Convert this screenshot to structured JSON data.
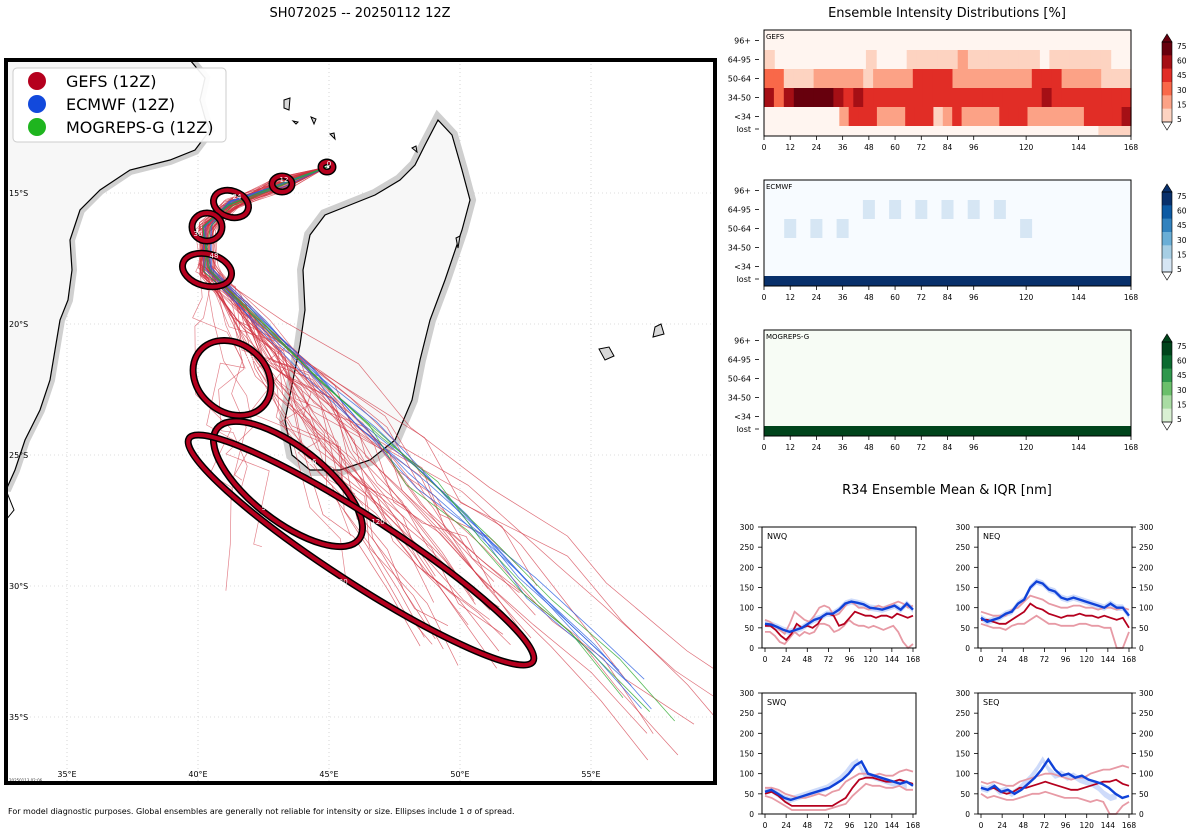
{
  "map": {
    "title": "SH072025 -- 20250112 12Z",
    "legend": [
      {
        "label": "GEFS (12Z)",
        "color": "#b5001e"
      },
      {
        "label": "ECMWF (12Z)",
        "color": "#1249dc"
      },
      {
        "label": "MOGREPS-G (12Z)",
        "color": "#1fb51f"
      }
    ],
    "lon_labels": [
      "35°E",
      "40°E",
      "45°E",
      "50°E",
      "55°E"
    ],
    "lat_labels": [
      "15°S",
      "20°S",
      "25°S",
      "30°S",
      "35°S"
    ],
    "stamp": "20250113 02:06",
    "tau_labels": [
      "0",
      "12",
      "24",
      "36",
      "48",
      "72",
      "96",
      "96",
      "120",
      "120"
    ],
    "footnote": "For model diagnostic purposes. Global ensembles are generally not reliable for intensity or size. Ellipses include 1 σ of spread."
  },
  "intensity": {
    "title": "Ensemble Intensity Distributions [%]",
    "y_labels": [
      "96+",
      "64-95",
      "50-64",
      "34-50",
      "<34",
      "lost"
    ],
    "x_ticks": [
      "0",
      "12",
      "24",
      "36",
      "48",
      "60",
      "72",
      "84",
      "96",
      "120",
      "144",
      "168"
    ],
    "colorbar_ticks": [
      "75",
      "60",
      "45",
      "30",
      "15",
      "5"
    ],
    "panels": [
      {
        "name": "GEFS",
        "color": "#c0392b"
      },
      {
        "name": "ECMWF",
        "color": "#2471b5"
      },
      {
        "name": "MOGREPS-G",
        "color": "#2e8b3e"
      }
    ]
  },
  "r34": {
    "title": "R34 Ensemble Mean & IQR [nm]",
    "y_ticks": [
      "0",
      "50",
      "100",
      "150",
      "200",
      "250",
      "300"
    ],
    "x_ticks": [
      "0",
      "24",
      "48",
      "72",
      "96",
      "120",
      "144",
      "168"
    ]
  },
  "chart_data": [
    {
      "type": "heatmap",
      "title": "GEFS",
      "ylabels": [
        "96+",
        "64-95",
        "50-64",
        "34-50",
        "<34",
        "lost"
      ],
      "xlim": [
        0,
        168
      ],
      "step_hours": 6,
      "units": "%",
      "rows": {
        "96+": [
          0,
          0,
          0,
          0,
          0,
          0,
          0,
          0,
          0,
          0,
          0,
          0,
          0,
          0,
          0,
          0,
          0,
          0,
          0,
          0,
          0,
          0,
          0,
          0,
          0,
          0,
          0,
          0,
          0
        ],
        "64-95": [
          8,
          2,
          2,
          2,
          2,
          2,
          2,
          2,
          2,
          2,
          8,
          2,
          2,
          2,
          8,
          8,
          8,
          8,
          8,
          18,
          8,
          8,
          8,
          8,
          8,
          8,
          8,
          2,
          8,
          8,
          8,
          8,
          8,
          8,
          2,
          2
        ],
        "50-64": [
          40,
          30,
          8,
          8,
          8,
          25,
          25,
          25,
          25,
          25,
          8,
          25,
          25,
          25,
          25,
          45,
          45,
          45,
          45,
          25,
          25,
          25,
          25,
          25,
          25,
          25,
          25,
          45,
          45,
          45,
          25,
          25,
          25,
          25,
          8,
          8,
          8
        ],
        "34-50": [
          60,
          40,
          70,
          90,
          90,
          90,
          80,
          60,
          50,
          70,
          45,
          45,
          45,
          45,
          45,
          45,
          45,
          45,
          45,
          45,
          45,
          45,
          45,
          45,
          45,
          45,
          45,
          45,
          60,
          45,
          45,
          45,
          45,
          45,
          45,
          45,
          45
        ],
        "<34": [
          2,
          2,
          2,
          2,
          2,
          2,
          2,
          2,
          15,
          45,
          45,
          45,
          25,
          25,
          25,
          45,
          45,
          45,
          8,
          25,
          45,
          25,
          25,
          25,
          25,
          45,
          45,
          45,
          25,
          25,
          25,
          25,
          25,
          25,
          45,
          45,
          45,
          45,
          60
        ],
        "lost": [
          0,
          0,
          0,
          0,
          0,
          0,
          0,
          0,
          0,
          0,
          0,
          0,
          0,
          0,
          0,
          0,
          0,
          0,
          0,
          0,
          0,
          0,
          0,
          0,
          0,
          0,
          0,
          0,
          0,
          0,
          0,
          0,
          0,
          0,
          0,
          0,
          0,
          0,
          0,
          0,
          0,
          8,
          8,
          8,
          8
        ]
      }
    },
    {
      "type": "heatmap",
      "title": "ECMWF",
      "ylabels": [
        "96+",
        "64-95",
        "50-64",
        "34-50",
        "<34",
        "lost"
      ],
      "xlim": [
        0,
        168
      ],
      "units": "%",
      "highlights": [
        {
          "row": "64-95",
          "hours": [
            48,
            60,
            72,
            84,
            96,
            108
          ],
          "value": 10
        },
        {
          "row": "50-64",
          "hours": [
            12,
            24,
            36,
            120
          ],
          "value": 10
        }
      ],
      "lost_all": 100
    },
    {
      "type": "heatmap",
      "title": "MOGREPS-G",
      "ylabels": [
        "96+",
        "64-95",
        "50-64",
        "34-50",
        "<34",
        "lost"
      ],
      "xlim": [
        0,
        168
      ],
      "units": "%",
      "lost_all": 100
    },
    {
      "type": "line",
      "title": "NWQ",
      "ylim": [
        0,
        300
      ],
      "xlim": [
        0,
        168
      ],
      "step_hours": 6,
      "series": [
        {
          "name": "ECMWF mean",
          "values": [
            60,
            58,
            52,
            45,
            40,
            45,
            50,
            60,
            70,
            75,
            85,
            85,
            95,
            110,
            115,
            112,
            108,
            100,
            98,
            95,
            100,
            105,
            95,
            110,
            95
          ]
        },
        {
          "name": "GEFS mean",
          "values": [
            55,
            55,
            45,
            30,
            20,
            35,
            60,
            50,
            55,
            50,
            60,
            80,
            85,
            80,
            55,
            60,
            75,
            90,
            85,
            80,
            80,
            75,
            80,
            80,
            75,
            85,
            80,
            75,
            80
          ]
        },
        {
          "name": "GEFS IQR low",
          "values": [
            40,
            40,
            30,
            15,
            10,
            25,
            40,
            30,
            40,
            35,
            40,
            60,
            60,
            55,
            40,
            45,
            55,
            70,
            60,
            55,
            55,
            50,
            55,
            50,
            45,
            50,
            55,
            40,
            15,
            0,
            10
          ]
        },
        {
          "name": "GEFS IQR high",
          "values": [
            70,
            65,
            55,
            45,
            35,
            60,
            90,
            80,
            70,
            65,
            80,
            100,
            105,
            100,
            80,
            85,
            100,
            115,
            110,
            100,
            100,
            95,
            100,
            105,
            100,
            105,
            110,
            115,
            110,
            100,
            105
          ]
        }
      ]
    },
    {
      "type": "line",
      "title": "NEQ",
      "ylim": [
        0,
        300
      ],
      "xlim": [
        0,
        168
      ],
      "step_hours": 6,
      "series": [
        {
          "name": "ECMWF mean",
          "values": [
            75,
            65,
            70,
            75,
            85,
            90,
            110,
            120,
            150,
            165,
            160,
            145,
            140,
            125,
            120,
            125,
            120,
            115,
            110,
            105,
            100,
            110,
            100,
            100,
            80
          ]
        },
        {
          "name": "GEFS mean",
          "values": [
            70,
            70,
            65,
            60,
            60,
            70,
            80,
            90,
            110,
            100,
            95,
            85,
            80,
            75,
            80,
            80,
            85,
            80,
            80,
            75,
            80,
            75,
            70,
            75,
            50
          ]
        },
        {
          "name": "GEFS IQR low",
          "values": [
            60,
            55,
            50,
            50,
            45,
            55,
            60,
            60,
            70,
            80,
            70,
            60,
            60,
            55,
            55,
            55,
            60,
            60,
            55,
            55,
            50,
            50,
            0,
            0,
            40
          ]
        },
        {
          "name": "GEFS IQR high",
          "values": [
            90,
            85,
            80,
            80,
            80,
            95,
            100,
            115,
            130,
            125,
            120,
            110,
            105,
            100,
            100,
            105,
            105,
            100,
            100,
            95,
            100,
            100,
            95,
            100,
            95
          ]
        }
      ]
    },
    {
      "type": "line",
      "title": "SWQ",
      "ylim": [
        0,
        300
      ],
      "xlim": [
        0,
        168
      ],
      "step_hours": 6,
      "series": [
        {
          "name": "ECMWF mean",
          "values": [
            55,
            60,
            50,
            40,
            35,
            40,
            45,
            50,
            55,
            60,
            65,
            75,
            85,
            100,
            120,
            130,
            100,
            95,
            90,
            85,
            80,
            75,
            80,
            70
          ]
        },
        {
          "name": "GEFS mean",
          "values": [
            50,
            55,
            45,
            30,
            20,
            20,
            20,
            20,
            20,
            20,
            20,
            30,
            40,
            65,
            85,
            90,
            90,
            85,
            80,
            80,
            85,
            80,
            75
          ]
        },
        {
          "name": "GEFS IQR low",
          "values": [
            45,
            40,
            30,
            20,
            10,
            10,
            10,
            10,
            10,
            10,
            15,
            20,
            25,
            45,
            60,
            75,
            70,
            70,
            65,
            65,
            70,
            60,
            60
          ]
        },
        {
          "name": "GEFS IQR high",
          "values": [
            65,
            65,
            60,
            50,
            45,
            40,
            40,
            45,
            50,
            45,
            55,
            60,
            80,
            90,
            100,
            100,
            95,
            100,
            95,
            95,
            105,
            110,
            105
          ]
        }
      ]
    },
    {
      "type": "line",
      "title": "SEQ",
      "ylim": [
        0,
        300
      ],
      "xlim": [
        0,
        168
      ],
      "step_hours": 6,
      "series": [
        {
          "name": "ECMWF mean",
          "values": [
            65,
            60,
            70,
            55,
            60,
            50,
            60,
            75,
            90,
            110,
            135,
            110,
            95,
            100,
            90,
            95,
            85,
            80,
            75,
            65,
            50,
            40,
            45
          ]
        },
        {
          "name": "GEFS mean",
          "values": [
            65,
            60,
            65,
            55,
            50,
            55,
            65,
            65,
            70,
            75,
            80,
            75,
            70,
            65,
            60,
            60,
            65,
            70,
            75,
            80,
            80,
            85,
            75,
            70
          ]
        },
        {
          "name": "GEFS IQR low",
          "values": [
            50,
            40,
            45,
            40,
            35,
            35,
            40,
            45,
            50,
            50,
            55,
            50,
            45,
            40,
            40,
            40,
            35,
            30,
            35,
            30,
            0,
            0,
            20,
            30
          ]
        },
        {
          "name": "GEFS IQR high",
          "values": [
            80,
            75,
            80,
            75,
            70,
            70,
            80,
            85,
            90,
            95,
            100,
            100,
            95,
            90,
            85,
            90,
            90,
            100,
            105,
            110,
            110,
            115,
            120,
            115
          ]
        }
      ]
    }
  ]
}
